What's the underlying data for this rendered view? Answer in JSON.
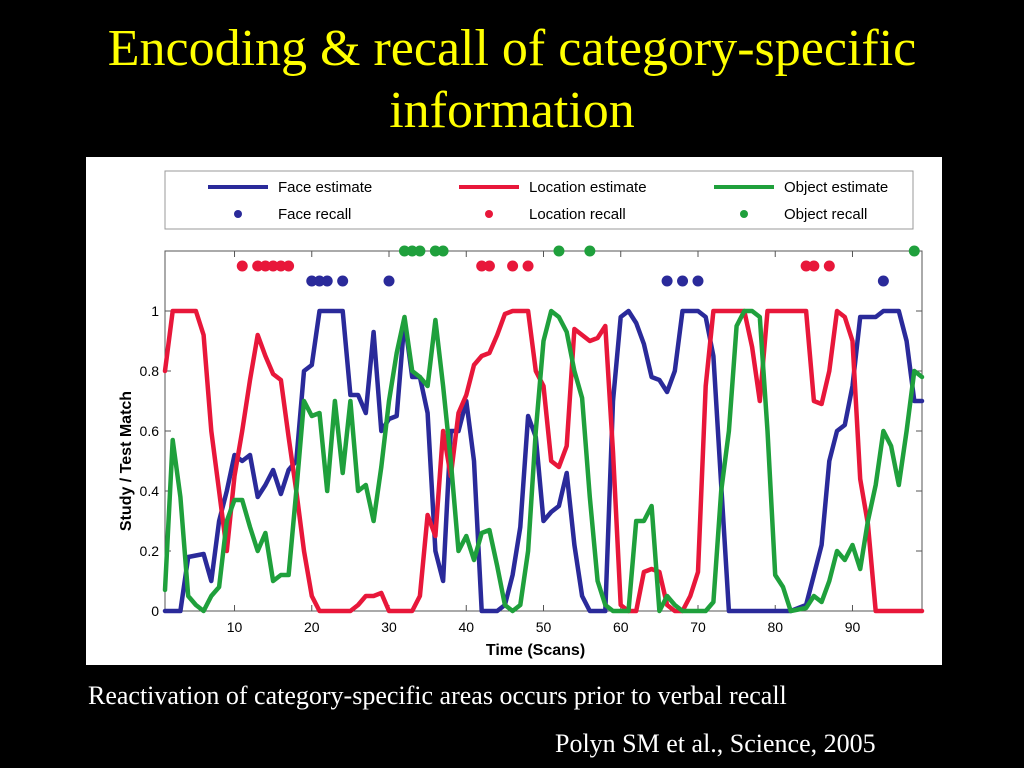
{
  "slide": {
    "title": "Encoding & recall of category-specific information",
    "caption": "Reactivation of category-specific areas occurs prior to verbal recall",
    "citation": "Polyn SM et al., Science, 2005"
  },
  "chart_data": {
    "type": "line",
    "xlabel": "Time (Scans)",
    "ylabel": "Study / Test Match",
    "xlim": [
      1,
      99
    ],
    "ylim": [
      0,
      1.2
    ],
    "xticks": [
      10,
      20,
      30,
      40,
      50,
      60,
      70,
      80,
      90
    ],
    "yticks": [
      0,
      0.2,
      0.4,
      0.6,
      0.8,
      1
    ],
    "ytick_labels": [
      "0",
      "0.2",
      "0.4",
      "0.6",
      "0.8",
      "1"
    ],
    "grid": false,
    "legend_position": "top",
    "legend": [
      {
        "label": "Face  estimate",
        "kind": "line",
        "color": "#2a2a9a"
      },
      {
        "label": "Location estimate",
        "kind": "line",
        "color": "#e8173a"
      },
      {
        "label": "Object estimate",
        "kind": "line",
        "color": "#1fa03c"
      },
      {
        "label": "Face  recall",
        "kind": "dot",
        "color": "#2a2a9a"
      },
      {
        "label": "Location  recall",
        "kind": "dot",
        "color": "#e8173a"
      },
      {
        "label": "Object  recall",
        "kind": "dot",
        "color": "#1fa03c"
      }
    ],
    "series": [
      {
        "name": "Face estimate",
        "color": "#2a2a9a",
        "points": [
          [
            1,
            0
          ],
          [
            3,
            0
          ],
          [
            4,
            0.18
          ],
          [
            6,
            0.19
          ],
          [
            7,
            0.1
          ],
          [
            8,
            0.3
          ],
          [
            9,
            0.4
          ],
          [
            10,
            0.52
          ],
          [
            11,
            0.5
          ],
          [
            12,
            0.52
          ],
          [
            13,
            0.38
          ],
          [
            14,
            0.42
          ],
          [
            15,
            0.47
          ],
          [
            16,
            0.39
          ],
          [
            17,
            0.47
          ],
          [
            18,
            0.5
          ],
          [
            19,
            0.8
          ],
          [
            20,
            0.82
          ],
          [
            21,
            1.0
          ],
          [
            24,
            1.0
          ],
          [
            25,
            0.72
          ],
          [
            26,
            0.72
          ],
          [
            27,
            0.66
          ],
          [
            28,
            0.93
          ],
          [
            29,
            0.6
          ],
          [
            30,
            0.64
          ],
          [
            31,
            0.65
          ],
          [
            32,
            0.97
          ],
          [
            33,
            0.78
          ],
          [
            34,
            0.78
          ],
          [
            35,
            0.66
          ],
          [
            36,
            0.2
          ],
          [
            37,
            0.1
          ],
          [
            38,
            0.6
          ],
          [
            39,
            0.6
          ],
          [
            40,
            0.7
          ],
          [
            41,
            0.5
          ],
          [
            42,
            0.0
          ],
          [
            44,
            0.0
          ],
          [
            45,
            0.02
          ],
          [
            46,
            0.12
          ],
          [
            47,
            0.28
          ],
          [
            48,
            0.65
          ],
          [
            49,
            0.58
          ],
          [
            50,
            0.3
          ],
          [
            51,
            0.33
          ],
          [
            52,
            0.35
          ],
          [
            53,
            0.46
          ],
          [
            54,
            0.22
          ],
          [
            55,
            0.05
          ],
          [
            56,
            0.0
          ],
          [
            58,
            0.0
          ],
          [
            59,
            0.7
          ],
          [
            60,
            0.98
          ],
          [
            61,
            1.0
          ],
          [
            62,
            0.96
          ],
          [
            63,
            0.89
          ],
          [
            64,
            0.78
          ],
          [
            65,
            0.77
          ],
          [
            66,
            0.73
          ],
          [
            67,
            0.8
          ],
          [
            68,
            1.0
          ],
          [
            70,
            1.0
          ],
          [
            71,
            0.98
          ],
          [
            72,
            0.85
          ],
          [
            73,
            0.42
          ],
          [
            74,
            0.0
          ],
          [
            82,
            0.0
          ],
          [
            84,
            0.02
          ],
          [
            85,
            0.12
          ],
          [
            86,
            0.22
          ],
          [
            87,
            0.5
          ],
          [
            88,
            0.6
          ],
          [
            89,
            0.62
          ],
          [
            90,
            0.75
          ],
          [
            91,
            0.98
          ],
          [
            92,
            0.98
          ],
          [
            93,
            0.98
          ],
          [
            94,
            1.0
          ],
          [
            95,
            1.0
          ],
          [
            96,
            1.0
          ],
          [
            97,
            0.9
          ],
          [
            98,
            0.7
          ],
          [
            99,
            0.7
          ]
        ]
      },
      {
        "name": "Location estimate",
        "color": "#e8173a",
        "points": [
          [
            1,
            0.8
          ],
          [
            2,
            1.0
          ],
          [
            5,
            1.0
          ],
          [
            6,
            0.92
          ],
          [
            7,
            0.6
          ],
          [
            8,
            0.4
          ],
          [
            9,
            0.2
          ],
          [
            10,
            0.45
          ],
          [
            11,
            0.6
          ],
          [
            12,
            0.77
          ],
          [
            13,
            0.92
          ],
          [
            14,
            0.85
          ],
          [
            15,
            0.79
          ],
          [
            16,
            0.77
          ],
          [
            17,
            0.58
          ],
          [
            18,
            0.4
          ],
          [
            19,
            0.2
          ],
          [
            20,
            0.05
          ],
          [
            21,
            0.0
          ],
          [
            25,
            0.0
          ],
          [
            26,
            0.02
          ],
          [
            27,
            0.05
          ],
          [
            28,
            0.05
          ],
          [
            29,
            0.06
          ],
          [
            30,
            0.0
          ],
          [
            33,
            0.0
          ],
          [
            34,
            0.05
          ],
          [
            35,
            0.32
          ],
          [
            36,
            0.25
          ],
          [
            37,
            0.6
          ],
          [
            38,
            0.45
          ],
          [
            39,
            0.66
          ],
          [
            40,
            0.72
          ],
          [
            41,
            0.82
          ],
          [
            42,
            0.85
          ],
          [
            43,
            0.86
          ],
          [
            44,
            0.92
          ],
          [
            45,
            0.99
          ],
          [
            46,
            1.0
          ],
          [
            48,
            1.0
          ],
          [
            49,
            0.8
          ],
          [
            50,
            0.75
          ],
          [
            51,
            0.5
          ],
          [
            52,
            0.48
          ],
          [
            53,
            0.55
          ],
          [
            54,
            0.94
          ],
          [
            55,
            0.92
          ],
          [
            56,
            0.9
          ],
          [
            57,
            0.91
          ],
          [
            58,
            0.95
          ],
          [
            59,
            0.53
          ],
          [
            60,
            0.02
          ],
          [
            61,
            0.0
          ],
          [
            62,
            0.0
          ],
          [
            63,
            0.13
          ],
          [
            64,
            0.14
          ],
          [
            65,
            0.13
          ],
          [
            66,
            0.02
          ],
          [
            67,
            0.0
          ],
          [
            68,
            0.0
          ],
          [
            69,
            0.05
          ],
          [
            70,
            0.13
          ],
          [
            71,
            0.75
          ],
          [
            72,
            1.0
          ],
          [
            76,
            1.0
          ],
          [
            77,
            0.88
          ],
          [
            78,
            0.7
          ],
          [
            79,
            1.0
          ],
          [
            84,
            1.0
          ],
          [
            85,
            0.7
          ],
          [
            86,
            0.69
          ],
          [
            87,
            0.8
          ],
          [
            88,
            1.0
          ],
          [
            89,
            0.98
          ],
          [
            90,
            0.9
          ],
          [
            91,
            0.44
          ],
          [
            92,
            0.29
          ],
          [
            93,
            0.0
          ],
          [
            99,
            0.0
          ]
        ]
      },
      {
        "name": "Object estimate",
        "color": "#1fa03c",
        "points": [
          [
            1,
            0.07
          ],
          [
            2,
            0.57
          ],
          [
            3,
            0.38
          ],
          [
            4,
            0.05
          ],
          [
            5,
            0.02
          ],
          [
            6,
            0.0
          ],
          [
            7,
            0.05
          ],
          [
            8,
            0.08
          ],
          [
            9,
            0.3
          ],
          [
            10,
            0.37
          ],
          [
            11,
            0.37
          ],
          [
            12,
            0.28
          ],
          [
            13,
            0.2
          ],
          [
            14,
            0.26
          ],
          [
            15,
            0.1
          ],
          [
            16,
            0.12
          ],
          [
            17,
            0.12
          ],
          [
            18,
            0.4
          ],
          [
            19,
            0.7
          ],
          [
            20,
            0.65
          ],
          [
            21,
            0.66
          ],
          [
            22,
            0.4
          ],
          [
            23,
            0.7
          ],
          [
            24,
            0.46
          ],
          [
            25,
            0.7
          ],
          [
            26,
            0.4
          ],
          [
            27,
            0.42
          ],
          [
            28,
            0.3
          ],
          [
            29,
            0.48
          ],
          [
            30,
            0.7
          ],
          [
            31,
            0.86
          ],
          [
            32,
            0.98
          ],
          [
            33,
            0.8
          ],
          [
            34,
            0.78
          ],
          [
            35,
            0.75
          ],
          [
            36,
            0.97
          ],
          [
            37,
            0.75
          ],
          [
            38,
            0.5
          ],
          [
            39,
            0.2
          ],
          [
            40,
            0.25
          ],
          [
            41,
            0.17
          ],
          [
            42,
            0.26
          ],
          [
            43,
            0.27
          ],
          [
            44,
            0.15
          ],
          [
            45,
            0.02
          ],
          [
            46,
            0.0
          ],
          [
            47,
            0.02
          ],
          [
            48,
            0.2
          ],
          [
            49,
            0.6
          ],
          [
            50,
            0.9
          ],
          [
            51,
            1.0
          ],
          [
            52,
            0.98
          ],
          [
            53,
            0.93
          ],
          [
            54,
            0.8
          ],
          [
            55,
            0.71
          ],
          [
            56,
            0.38
          ],
          [
            57,
            0.1
          ],
          [
            58,
            0.02
          ],
          [
            59,
            0.0
          ],
          [
            61,
            0.0
          ],
          [
            62,
            0.3
          ],
          [
            63,
            0.3
          ],
          [
            64,
            0.35
          ],
          [
            65,
            0.0
          ],
          [
            66,
            0.05
          ],
          [
            67,
            0.02
          ],
          [
            68,
            0.0
          ],
          [
            71,
            0.0
          ],
          [
            72,
            0.03
          ],
          [
            73,
            0.4
          ],
          [
            74,
            0.6
          ],
          [
            75,
            0.95
          ],
          [
            76,
            1.0
          ],
          [
            77,
            1.0
          ],
          [
            78,
            0.98
          ],
          [
            79,
            0.6
          ],
          [
            80,
            0.12
          ],
          [
            81,
            0.08
          ],
          [
            82,
            0.0
          ],
          [
            84,
            0.01
          ],
          [
            85,
            0.05
          ],
          [
            86,
            0.03
          ],
          [
            87,
            0.1
          ],
          [
            88,
            0.2
          ],
          [
            89,
            0.17
          ],
          [
            90,
            0.22
          ],
          [
            91,
            0.14
          ],
          [
            92,
            0.3
          ],
          [
            93,
            0.42
          ],
          [
            94,
            0.6
          ],
          [
            95,
            0.55
          ],
          [
            96,
            0.42
          ],
          [
            97,
            0.6
          ],
          [
            98,
            0.8
          ],
          [
            99,
            0.78
          ]
        ]
      }
    ],
    "recall_markers": [
      {
        "name": "Face recall",
        "color": "#2a2a9a",
        "y": 1.1,
        "x": [
          20,
          21,
          22,
          24,
          30,
          66,
          68,
          70,
          94
        ]
      },
      {
        "name": "Location recall",
        "color": "#e8173a",
        "y": 1.15,
        "x": [
          11,
          13,
          14,
          15,
          16,
          17,
          42,
          43,
          46,
          48,
          84,
          85,
          87
        ]
      },
      {
        "name": "Object recall",
        "color": "#1fa03c",
        "y": 1.2,
        "x": [
          32,
          33,
          34,
          36,
          37,
          52,
          56,
          98
        ]
      }
    ]
  }
}
